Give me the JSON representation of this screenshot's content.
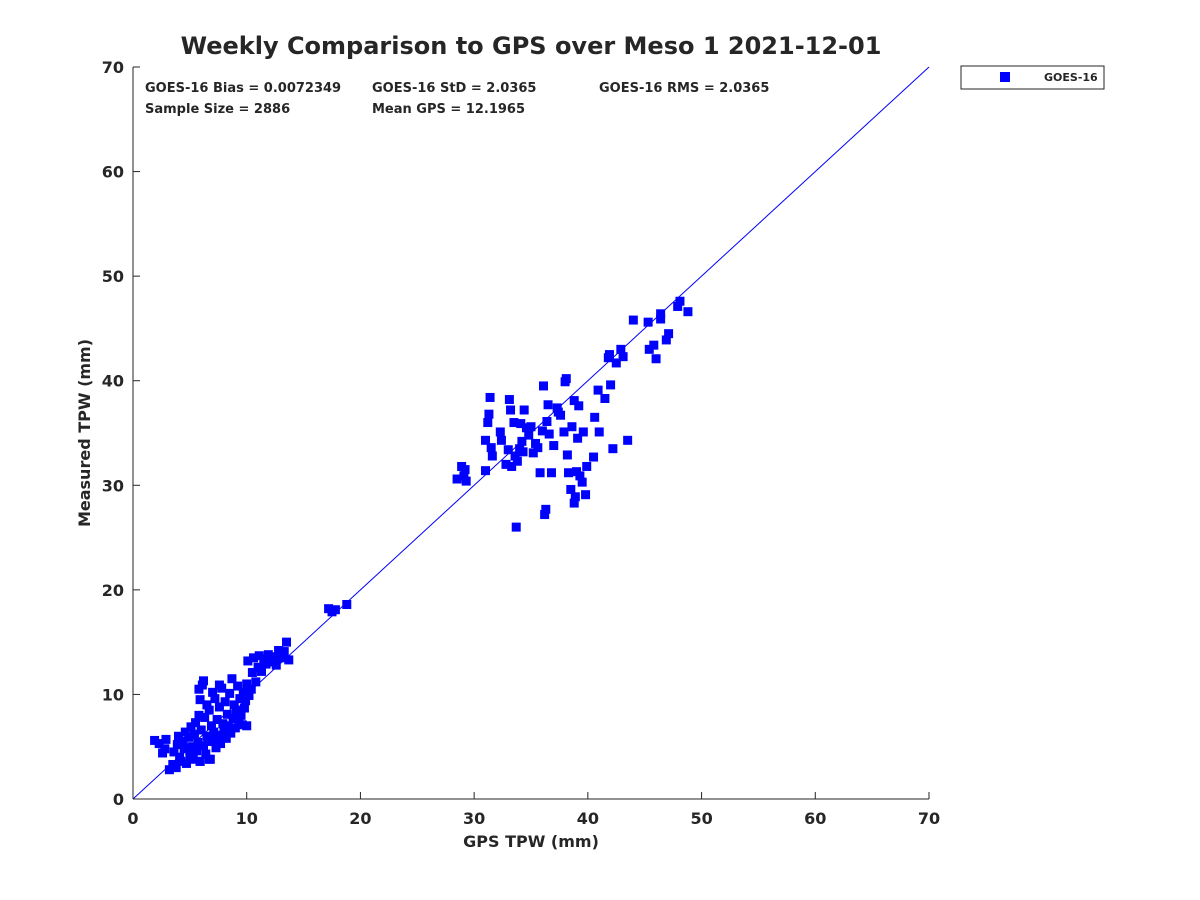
{
  "chart_data": {
    "type": "scatter",
    "title": "Weekly Comparison to GPS over Meso 1 2021-12-01",
    "xlabel": "GPS TPW (mm)",
    "ylabel": "Measured TPW (mm)",
    "xlim": [
      0,
      70
    ],
    "ylim": [
      0,
      70
    ],
    "xticks": [
      "0",
      "10",
      "20",
      "30",
      "40",
      "50",
      "60",
      "70"
    ],
    "yticks": [
      "0",
      "10",
      "20",
      "30",
      "40",
      "50",
      "60",
      "70"
    ],
    "grid": false,
    "legend_position": "outside top-right",
    "stats": {
      "bias": "GOES-16 Bias = 0.0072349",
      "std": "GOES-16 StD = 2.0365",
      "rms": "GOES-16 RMS = 2.0365",
      "sample_size": "Sample Size = 2886",
      "mean_gps": "Mean GPS = 12.1965"
    },
    "reference_line": {
      "from": [
        0,
        0
      ],
      "to": [
        70,
        70
      ],
      "color": "#0000ff"
    },
    "series": [
      {
        "name": "GOES-16",
        "color": "#0000ff",
        "marker": "square",
        "points": [
          [
            1.9,
            5.6
          ],
          [
            2.3,
            5.3
          ],
          [
            2.6,
            4.4
          ],
          [
            2.9,
            5.7
          ],
          [
            2.8,
            4.8
          ],
          [
            3.2,
            2.8
          ],
          [
            3.5,
            3.3
          ],
          [
            3.6,
            4.5
          ],
          [
            3.8,
            3.0
          ],
          [
            3.9,
            5.2
          ],
          [
            4.0,
            6.0
          ],
          [
            4.1,
            4.0
          ],
          [
            4.2,
            3.6
          ],
          [
            4.4,
            5.5
          ],
          [
            4.5,
            4.8
          ],
          [
            4.6,
            6.4
          ],
          [
            4.7,
            3.4
          ],
          [
            4.9,
            5.9
          ],
          [
            5.0,
            4.2
          ],
          [
            5.1,
            6.9
          ],
          [
            5.2,
            5.0
          ],
          [
            5.3,
            3.8
          ],
          [
            5.4,
            6.2
          ],
          [
            5.5,
            7.3
          ],
          [
            5.6,
            4.6
          ],
          [
            5.7,
            5.4
          ],
          [
            5.8,
            8.0
          ],
          [
            5.9,
            3.6
          ],
          [
            5.9,
            9.5
          ],
          [
            6.0,
            6.6
          ],
          [
            6.1,
            10.9
          ],
          [
            6.2,
            5.1
          ],
          [
            6.3,
            7.8
          ],
          [
            6.4,
            4.3
          ],
          [
            6.5,
            9.0
          ],
          [
            6.5,
            6.0
          ],
          [
            6.6,
            5.5
          ],
          [
            6.7,
            8.5
          ],
          [
            6.8,
            3.8
          ],
          [
            6.9,
            7.0
          ],
          [
            7.0,
            10.2
          ],
          [
            7.0,
            5.6
          ],
          [
            7.1,
            6.4
          ],
          [
            7.2,
            9.6
          ],
          [
            7.3,
            4.9
          ],
          [
            7.4,
            7.6
          ],
          [
            7.5,
            6.1
          ],
          [
            7.6,
            8.8
          ],
          [
            7.7,
            5.3
          ],
          [
            7.8,
            10.6
          ],
          [
            7.9,
            7.2
          ],
          [
            8.0,
            6.5
          ],
          [
            8.1,
            9.3
          ],
          [
            8.2,
            5.8
          ],
          [
            8.3,
            8.1
          ],
          [
            8.4,
            7.0
          ],
          [
            8.5,
            10.1
          ],
          [
            8.6,
            6.3
          ],
          [
            8.7,
            11.5
          ],
          [
            8.8,
            7.7
          ],
          [
            8.9,
            9.0
          ],
          [
            9.0,
            6.8
          ],
          [
            9.1,
            8.5
          ],
          [
            9.2,
            10.8
          ],
          [
            9.3,
            7.3
          ],
          [
            9.4,
            9.6
          ],
          [
            9.5,
            8.0
          ],
          [
            9.6,
            7.1
          ],
          [
            9.7,
            10.2
          ],
          [
            9.8,
            8.7
          ],
          [
            9.9,
            9.4
          ],
          [
            10.0,
            11.0
          ],
          [
            10.0,
            7.0
          ],
          [
            10.1,
            13.2
          ],
          [
            10.2,
            9.9
          ],
          [
            10.4,
            10.5
          ],
          [
            10.5,
            12.1
          ],
          [
            10.6,
            13.5
          ],
          [
            10.8,
            11.2
          ],
          [
            11.0,
            12.6
          ],
          [
            11.1,
            13.7
          ],
          [
            11.3,
            12.2
          ],
          [
            11.5,
            13.4
          ],
          [
            11.7,
            12.9
          ],
          [
            11.9,
            13.8
          ],
          [
            12.1,
            13.1
          ],
          [
            12.4,
            13.6
          ],
          [
            12.6,
            12.8
          ],
          [
            12.8,
            14.2
          ],
          [
            13.1,
            13.5
          ],
          [
            13.3,
            14.1
          ],
          [
            13.5,
            15.0
          ],
          [
            13.7,
            13.3
          ],
          [
            6.2,
            11.3
          ],
          [
            5.8,
            10.5
          ],
          [
            7.6,
            10.9
          ],
          [
            6.7,
            3.8
          ],
          [
            5.9,
            3.6
          ],
          [
            17.2,
            18.2
          ],
          [
            17.5,
            17.9
          ],
          [
            17.8,
            18.1
          ],
          [
            18.8,
            18.6
          ],
          [
            28.5,
            30.6
          ],
          [
            28.9,
            31.8
          ],
          [
            29.1,
            30.9
          ],
          [
            29.2,
            31.5
          ],
          [
            29.3,
            30.4
          ],
          [
            31.0,
            31.4
          ],
          [
            31.0,
            34.3
          ],
          [
            31.2,
            36.0
          ],
          [
            31.3,
            36.8
          ],
          [
            31.4,
            38.4
          ],
          [
            31.5,
            33.6
          ],
          [
            31.6,
            32.8
          ],
          [
            32.3,
            35.1
          ],
          [
            32.4,
            34.3
          ],
          [
            32.8,
            32.0
          ],
          [
            33.0,
            33.4
          ],
          [
            33.1,
            38.2
          ],
          [
            33.2,
            37.2
          ],
          [
            33.3,
            31.8
          ],
          [
            33.5,
            36.0
          ],
          [
            33.6,
            32.8
          ],
          [
            33.7,
            26.0
          ],
          [
            33.8,
            32.3
          ],
          [
            34.0,
            33.5
          ],
          [
            34.1,
            35.9
          ],
          [
            34.2,
            34.2
          ],
          [
            34.3,
            33.2
          ],
          [
            34.4,
            37.2
          ],
          [
            34.6,
            35.5
          ],
          [
            34.8,
            34.8
          ],
          [
            35.0,
            35.6
          ],
          [
            35.2,
            33.1
          ],
          [
            35.4,
            34.0
          ],
          [
            35.6,
            33.6
          ],
          [
            35.8,
            31.2
          ],
          [
            36.0,
            35.2
          ],
          [
            36.1,
            39.5
          ],
          [
            36.2,
            27.2
          ],
          [
            36.3,
            27.7
          ],
          [
            36.4,
            36.1
          ],
          [
            36.5,
            37.7
          ],
          [
            36.6,
            34.9
          ],
          [
            36.8,
            31.2
          ],
          [
            37.0,
            33.8
          ],
          [
            37.3,
            37.4
          ],
          [
            37.4,
            37.0
          ],
          [
            37.6,
            36.7
          ],
          [
            37.9,
            35.1
          ],
          [
            38.0,
            39.9
          ],
          [
            38.1,
            40.2
          ],
          [
            38.2,
            32.9
          ],
          [
            38.3,
            31.2
          ],
          [
            38.5,
            29.6
          ],
          [
            38.6,
            35.6
          ],
          [
            38.8,
            38.1
          ],
          [
            38.8,
            28.3
          ],
          [
            38.9,
            28.9
          ],
          [
            39.0,
            31.3
          ],
          [
            39.1,
            34.5
          ],
          [
            39.2,
            37.6
          ],
          [
            39.3,
            30.9
          ],
          [
            39.5,
            30.3
          ],
          [
            39.6,
            35.1
          ],
          [
            39.8,
            29.1
          ],
          [
            39.9,
            31.8
          ],
          [
            40.5,
            32.7
          ],
          [
            40.6,
            36.5
          ],
          [
            40.9,
            39.1
          ],
          [
            41.0,
            35.1
          ],
          [
            41.5,
            38.3
          ],
          [
            41.8,
            42.2
          ],
          [
            41.9,
            42.5
          ],
          [
            42.0,
            39.6
          ],
          [
            42.2,
            33.5
          ],
          [
            42.5,
            41.7
          ],
          [
            42.9,
            43.0
          ],
          [
            43.1,
            42.3
          ],
          [
            43.5,
            34.3
          ],
          [
            44.0,
            45.8
          ],
          [
            45.3,
            45.6
          ],
          [
            45.4,
            43.0
          ],
          [
            45.8,
            43.4
          ],
          [
            46.0,
            42.1
          ],
          [
            46.4,
            46.4
          ],
          [
            46.4,
            45.9
          ],
          [
            46.9,
            43.9
          ],
          [
            47.1,
            44.5
          ],
          [
            47.9,
            47.1
          ],
          [
            48.1,
            47.6
          ],
          [
            48.8,
            46.6
          ]
        ]
      }
    ]
  }
}
